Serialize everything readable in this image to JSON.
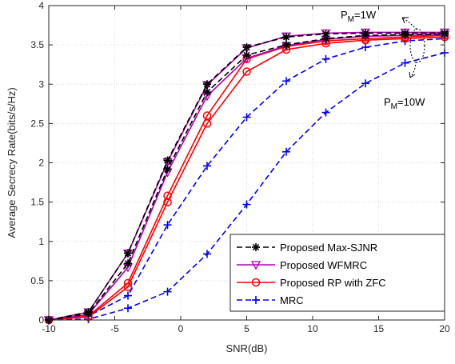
{
  "chart_data": {
    "type": "line",
    "title": "",
    "xlabel": "SNR(dB)",
    "ylabel": "Average Secrecy Rate(bits/s/Hz)",
    "xlim": [
      -10,
      20
    ],
    "ylim": [
      0,
      4
    ],
    "xticks": [
      -10,
      -5,
      0,
      5,
      10,
      15,
      20
    ],
    "yticks": [
      0,
      0.5,
      1,
      1.5,
      2,
      2.5,
      3,
      3.5,
      4
    ],
    "xtick_labels": [
      "-10",
      "-5",
      "0",
      "5",
      "10",
      "15",
      "20"
    ],
    "ytick_labels": [
      "0",
      "0.5",
      "1",
      "1.5",
      "2",
      "2.5",
      "3",
      "3.5",
      "4"
    ],
    "grid": true,
    "legend_position": "bottom-right",
    "x": [
      -10,
      -7,
      -4,
      -1,
      2,
      5,
      8,
      11,
      14,
      17,
      20
    ],
    "series": [
      {
        "name": "Proposed Max-SJNR",
        "group": "P_M=1W",
        "color": "#000000",
        "dash": "dashed",
        "marker": "asterisk",
        "values": [
          0.0,
          0.1,
          0.85,
          2.03,
          3.0,
          3.47,
          3.6,
          3.64,
          3.65,
          3.65,
          3.65
        ]
      },
      {
        "name": "Proposed Max-SJNR",
        "group": "P_M=10W",
        "color": "#000000",
        "dash": "dashed",
        "marker": "asterisk",
        "values": [
          0.0,
          0.08,
          0.72,
          1.92,
          2.9,
          3.37,
          3.5,
          3.58,
          3.62,
          3.63,
          3.64
        ]
      },
      {
        "name": "Proposed WFMRC",
        "group": "P_M=1W",
        "color": "#b000b0",
        "dash": "solid",
        "marker": "triangle-down",
        "values": [
          0.0,
          0.1,
          0.85,
          2.01,
          2.99,
          3.46,
          3.61,
          3.65,
          3.66,
          3.66,
          3.66
        ]
      },
      {
        "name": "Proposed WFMRC",
        "group": "P_M=10W",
        "color": "#b000b0",
        "dash": "solid",
        "marker": "triangle-down",
        "values": [
          0.0,
          0.07,
          0.67,
          1.88,
          2.85,
          3.33,
          3.49,
          3.57,
          3.61,
          3.62,
          3.63
        ]
      },
      {
        "name": "Proposed RP with ZFC",
        "group": "P_M=1W",
        "color": "#ff0000",
        "dash": "solid",
        "marker": "circle",
        "values": [
          0.0,
          0.05,
          0.47,
          1.58,
          2.6,
          3.32,
          3.48,
          3.55,
          3.58,
          3.6,
          3.62
        ]
      },
      {
        "name": "Proposed RP with ZFC",
        "group": "P_M=10W",
        "color": "#ff0000",
        "dash": "solid",
        "marker": "circle",
        "values": [
          0.0,
          0.04,
          0.42,
          1.5,
          2.5,
          3.16,
          3.44,
          3.52,
          3.56,
          3.58,
          3.6
        ]
      },
      {
        "name": "MRC",
        "group": "P_M=1W",
        "color": "#0000ff",
        "dash": "dashed",
        "marker": "plus",
        "values": [
          0.0,
          0.05,
          0.31,
          1.21,
          1.96,
          2.58,
          3.04,
          3.32,
          3.47,
          3.55,
          3.58
        ]
      },
      {
        "name": "MRC",
        "group": "P_M=10W",
        "color": "#0000ff",
        "dash": "dashed",
        "marker": "plus",
        "values": [
          0.0,
          0.01,
          0.15,
          0.36,
          0.84,
          1.47,
          2.14,
          2.64,
          3.01,
          3.27,
          3.4
        ]
      }
    ],
    "legend": [
      {
        "label": "Proposed Max-SJNR",
        "color": "#000000",
        "dash": "dashed",
        "marker": "asterisk"
      },
      {
        "label": "Proposed WFMRC",
        "color": "#b000b0",
        "dash": "solid",
        "marker": "triangle-down"
      },
      {
        "label": "Proposed RP with ZFC",
        "color": "#ff0000",
        "dash": "solid",
        "marker": "circle"
      },
      {
        "label": "MRC",
        "color": "#0000ff",
        "dash": "dashed",
        "marker": "plus"
      }
    ],
    "annotations": [
      {
        "base": "P",
        "sub": "M",
        "rest": "=1W"
      },
      {
        "base": "P",
        "sub": "M",
        "rest": "=10W"
      }
    ]
  }
}
